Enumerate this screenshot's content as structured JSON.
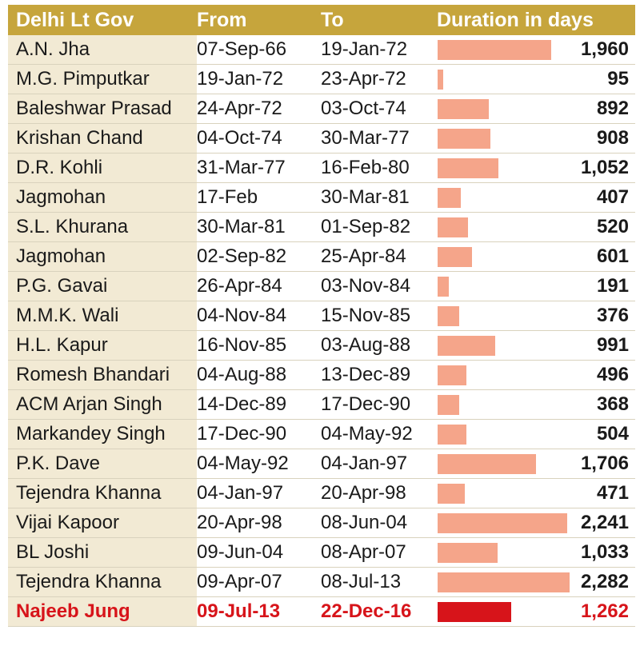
{
  "headers": {
    "name": "Delhi Lt Gov",
    "from": "From",
    "to": "To",
    "duration": "Duration in days"
  },
  "colors": {
    "header_bg": "#c6a53c",
    "bar": "#f5a58a",
    "highlight": "#d7141a",
    "name_col_bg": "#f2ead4"
  },
  "chart_data": {
    "type": "bar",
    "orientation": "horizontal",
    "categories": [
      "A.N. Jha",
      "M.G. Pimputkar",
      "Baleshwar Prasad",
      "Krishan Chand",
      "D.R. Kohli",
      "Jagmohan",
      "S.L. Khurana",
      "Jagmohan",
      "P.G. Gavai",
      "M.M.K. Wali",
      "H.L. Kapur",
      "Romesh Bhandari",
      "ACM Arjan Singh",
      "Markandey Singh",
      "P.K. Dave",
      "Tejendra Khanna",
      "Vijai Kapoor",
      "BL Joshi",
      "Tejendra Khanna",
      "Najeeb Jung"
    ],
    "values": [
      1960,
      95,
      892,
      908,
      1052,
      407,
      520,
      601,
      191,
      376,
      991,
      496,
      368,
      504,
      1706,
      471,
      2241,
      1033,
      2282,
      1262
    ],
    "value_labels": [
      "1,960",
      "95",
      "892",
      "908",
      "1,052",
      "407",
      "520",
      "601",
      "191",
      "376",
      "991",
      "496",
      "368",
      "504",
      "1,706",
      "471",
      "2,241",
      "1,033",
      "2,282",
      "1,262"
    ],
    "from": [
      "07-Sep-66",
      "19-Jan-72",
      "24-Apr-72",
      "04-Oct-74",
      "31-Mar-77",
      "17-Feb",
      "30-Mar-81",
      "02-Sep-82",
      "26-Apr-84",
      "04-Nov-84",
      "16-Nov-85",
      "04-Aug-88",
      "14-Dec-89",
      "17-Dec-90",
      "04-May-92",
      "04-Jan-97",
      "20-Apr-98",
      "09-Jun-04",
      "09-Apr-07",
      "09-Jul-13"
    ],
    "to": [
      "19-Jan-72",
      "23-Apr-72",
      "03-Oct-74",
      "30-Mar-77",
      "16-Feb-80",
      "30-Mar-81",
      "01-Sep-82",
      "25-Apr-84",
      "03-Nov-84",
      "15-Nov-85",
      "03-Aug-88",
      "13-Dec-89",
      "17-Dec-90",
      "04-May-92",
      "04-Jan-97",
      "20-Apr-98",
      "08-Jun-04",
      "08-Apr-07",
      "08-Jul-13",
      "22-Dec-16"
    ],
    "highlight_index": 19,
    "xlim": [
      0,
      2282
    ]
  }
}
